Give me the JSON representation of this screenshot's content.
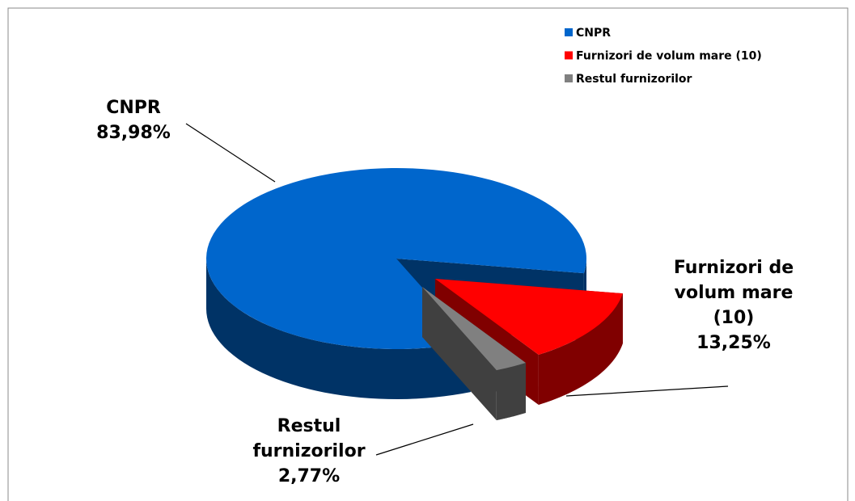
{
  "chart_data": {
    "type": "pie",
    "categories": [
      "CNPR",
      "Furnizori de volum mare (10)",
      "Restul furnizorilor"
    ],
    "values": [
      83.98,
      13.25,
      2.77
    ],
    "value_labels": [
      "83,98%",
      "13,25%",
      "2,77%"
    ],
    "colors": [
      "#0066cc",
      "#ff0000",
      "#808080"
    ],
    "legend": "top-right"
  }
}
